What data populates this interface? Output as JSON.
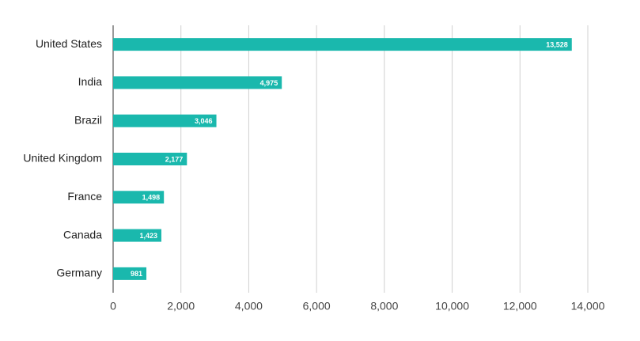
{
  "chart_data": {
    "type": "bar",
    "orientation": "horizontal",
    "categories": [
      "United States",
      "India",
      "Brazil",
      "United Kingdom",
      "France",
      "Canada",
      "Germany"
    ],
    "values": [
      13528,
      4975,
      3046,
      2177,
      1498,
      1423,
      981
    ],
    "value_labels": [
      "13,528",
      "4,975",
      "3,046",
      "2,177",
      "1,498",
      "1,423",
      "981"
    ],
    "color": "#1ab8ad",
    "xlim": [
      0,
      14000
    ],
    "xticks": [
      0,
      {
        "value": 2000,
        "label": "2,000"
      },
      {
        "value": 4000,
        "label": "4,000"
      },
      {
        "value": 6000,
        "label": "6,000"
      },
      {
        "value": 8000,
        "label": "8,000"
      },
      {
        "value": 10000,
        "label": "10,000"
      },
      {
        "value": 12000,
        "label": "12,000"
      },
      {
        "value": 14000,
        "label": "14,000"
      }
    ],
    "grid": true
  }
}
